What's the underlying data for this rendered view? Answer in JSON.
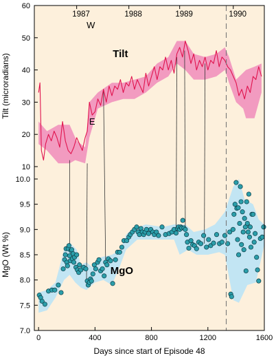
{
  "chart_data": [
    {
      "panel": "top",
      "type": "line",
      "ylabel": "Tilt (microradians)",
      "ylim": [
        10,
        60
      ],
      "yticks": [
        10,
        20,
        30,
        40,
        50,
        60
      ],
      "series_label": "Tilt",
      "annotations": [
        "W",
        "E"
      ],
      "year_labels": [
        {
          "label": "1987",
          "x": 350
        },
        {
          "label": "1988",
          "x": 720
        },
        {
          "label": "1989",
          "x": 1080
        },
        {
          "label": "1990",
          "x": 1460
        }
      ],
      "band_upper": [
        [
          0,
          24
        ],
        [
          60,
          21
        ],
        [
          140,
          23
        ],
        [
          220,
          23
        ],
        [
          270,
          18
        ],
        [
          330,
          16
        ],
        [
          360,
          30
        ],
        [
          420,
          33
        ],
        [
          520,
          36
        ],
        [
          600,
          36
        ],
        [
          680,
          37
        ],
        [
          760,
          38
        ],
        [
          840,
          42
        ],
        [
          920,
          44
        ],
        [
          980,
          49
        ],
        [
          1040,
          49
        ],
        [
          1100,
          45
        ],
        [
          1180,
          44
        ],
        [
          1260,
          45
        ],
        [
          1320,
          47
        ],
        [
          1350,
          44
        ],
        [
          1400,
          37
        ],
        [
          1470,
          40
        ],
        [
          1530,
          41
        ],
        [
          1580,
          42
        ]
      ],
      "band_lower": [
        [
          0,
          17
        ],
        [
          60,
          15
        ],
        [
          140,
          11
        ],
        [
          220,
          11
        ],
        [
          260,
          12
        ],
        [
          330,
          11
        ],
        [
          360,
          19
        ],
        [
          420,
          28
        ],
        [
          520,
          30
        ],
        [
          600,
          31
        ],
        [
          680,
          31
        ],
        [
          760,
          33
        ],
        [
          840,
          36
        ],
        [
          920,
          38
        ],
        [
          980,
          42
        ],
        [
          1040,
          40
        ],
        [
          1100,
          37
        ],
        [
          1180,
          37
        ],
        [
          1260,
          38
        ],
        [
          1320,
          40
        ],
        [
          1350,
          36
        ],
        [
          1400,
          30
        ],
        [
          1450,
          28
        ],
        [
          1470,
          25
        ],
        [
          1530,
          25
        ],
        [
          1580,
          33
        ]
      ],
      "x": [
        0,
        10,
        20,
        35,
        50,
        70,
        90,
        110,
        130,
        150,
        170,
        190,
        210,
        230,
        250,
        270,
        290,
        310,
        330,
        345,
        360,
        380,
        400,
        420,
        440,
        460,
        480,
        500,
        520,
        540,
        560,
        580,
        600,
        620,
        640,
        660,
        680,
        700,
        720,
        740,
        760,
        780,
        800,
        820,
        840,
        860,
        880,
        900,
        920,
        940,
        960,
        980,
        1000,
        1020,
        1040,
        1060,
        1080,
        1100,
        1120,
        1140,
        1160,
        1180,
        1200,
        1220,
        1240,
        1260,
        1280,
        1300,
        1320,
        1340,
        1360,
        1380,
        1400,
        1420,
        1440,
        1460,
        1480,
        1500,
        1520,
        1540,
        1560,
        1580
      ],
      "y": [
        33,
        36,
        15,
        12,
        17,
        20,
        18,
        21,
        19,
        16,
        24,
        18,
        15,
        14,
        16,
        19,
        17,
        15,
        19,
        21,
        30,
        26,
        27,
        31,
        29,
        34,
        30,
        35,
        32,
        35,
        34,
        37,
        33,
        36,
        35,
        38,
        34,
        37,
        35,
        33,
        39,
        35,
        38,
        41,
        37,
        41,
        40,
        44,
        40,
        43,
        39,
        45,
        47,
        44,
        49,
        46,
        42,
        45,
        40,
        43,
        41,
        44,
        40,
        43,
        42,
        46,
        41,
        44,
        43,
        41,
        40,
        38,
        36,
        32,
        34,
        31,
        35,
        33,
        38,
        37,
        41,
        38
      ]
    },
    {
      "panel": "bottom",
      "type": "scatter",
      "ylabel": "MgO (Wt %)",
      "xlabel": "Days since start of Episode 48",
      "ylim": [
        7.0,
        10.0
      ],
      "yticks": [
        7.0,
        7.5,
        8.0,
        8.5,
        9.0,
        9.5,
        10.0
      ],
      "xlim": [
        -30,
        1600
      ],
      "xticks": [
        0,
        400,
        800,
        1200,
        1600
      ],
      "series_label": "MgO",
      "event_x": 1330,
      "band_upper": [
        [
          0,
          7.75
        ],
        [
          60,
          7.8
        ],
        [
          120,
          7.95
        ],
        [
          180,
          8.6
        ],
        [
          220,
          8.75
        ],
        [
          270,
          8.6
        ],
        [
          300,
          8.3
        ],
        [
          340,
          8.35
        ],
        [
          380,
          8.25
        ],
        [
          440,
          8.45
        ],
        [
          520,
          8.5
        ],
        [
          580,
          8.6
        ],
        [
          620,
          8.9
        ],
        [
          660,
          9.0
        ],
        [
          760,
          9.1
        ],
        [
          880,
          9.05
        ],
        [
          960,
          9.1
        ],
        [
          1040,
          9.1
        ],
        [
          1100,
          8.95
        ],
        [
          1180,
          9.0
        ],
        [
          1250,
          9.1
        ],
        [
          1320,
          9.35
        ],
        [
          1380,
          9.85
        ],
        [
          1420,
          10.0
        ],
        [
          1460,
          9.6
        ],
        [
          1520,
          9.5
        ],
        [
          1560,
          9.2
        ],
        [
          1600,
          9.1
        ]
      ],
      "band_lower": [
        [
          0,
          7.35
        ],
        [
          60,
          7.4
        ],
        [
          120,
          7.65
        ],
        [
          180,
          8.0
        ],
        [
          220,
          8.1
        ],
        [
          260,
          7.95
        ],
        [
          300,
          7.85
        ],
        [
          340,
          7.8
        ],
        [
          400,
          7.95
        ],
        [
          460,
          8.0
        ],
        [
          520,
          7.9
        ],
        [
          580,
          8.3
        ],
        [
          620,
          8.6
        ],
        [
          700,
          8.8
        ],
        [
          800,
          8.8
        ],
        [
          880,
          8.8
        ],
        [
          960,
          8.8
        ],
        [
          1000,
          8.5
        ],
        [
          1060,
          8.6
        ],
        [
          1120,
          8.5
        ],
        [
          1200,
          8.5
        ],
        [
          1280,
          8.55
        ],
        [
          1320,
          8.5
        ],
        [
          1380,
          7.6
        ],
        [
          1420,
          7.55
        ],
        [
          1480,
          7.9
        ],
        [
          1540,
          7.95
        ],
        [
          1600,
          8.7
        ]
      ],
      "points": [
        [
          5,
          7.7
        ],
        [
          15,
          7.65
        ],
        [
          25,
          7.58
        ],
        [
          45,
          7.52
        ],
        [
          70,
          7.78
        ],
        [
          95,
          7.8
        ],
        [
          115,
          7.8
        ],
        [
          140,
          7.9
        ],
        [
          160,
          7.75
        ],
        [
          175,
          8.22
        ],
        [
          185,
          8.4
        ],
        [
          190,
          8.5
        ],
        [
          195,
          8.62
        ],
        [
          200,
          8.35
        ],
        [
          205,
          8.28
        ],
        [
          210,
          8.62
        ],
        [
          215,
          8.68
        ],
        [
          220,
          8.48
        ],
        [
          225,
          8.38
        ],
        [
          230,
          8.58
        ],
        [
          235,
          8.6
        ],
        [
          240,
          8.42
        ],
        [
          245,
          8.52
        ],
        [
          250,
          8.35
        ],
        [
          255,
          8.45
        ],
        [
          265,
          8.25
        ],
        [
          270,
          8.5
        ],
        [
          275,
          8.2
        ],
        [
          285,
          8.15
        ],
        [
          290,
          8.3
        ],
        [
          300,
          8.2
        ],
        [
          320,
          8.25
        ],
        [
          335,
          8.22
        ],
        [
          345,
          7.98
        ],
        [
          352,
          7.9
        ],
        [
          360,
          7.95
        ],
        [
          368,
          8.02
        ],
        [
          375,
          7.98
        ],
        [
          385,
          8.12
        ],
        [
          395,
          8.3
        ],
        [
          405,
          8.22
        ],
        [
          418,
          8.35
        ],
        [
          428,
          8.4
        ],
        [
          440,
          8.18
        ],
        [
          452,
          8.22
        ],
        [
          465,
          8.08
        ],
        [
          475,
          8.35
        ],
        [
          485,
          8.3
        ],
        [
          495,
          8.42
        ],
        [
          510,
          8.38
        ],
        [
          525,
          7.93
        ],
        [
          545,
          8.4
        ],
        [
          560,
          8.55
        ],
        [
          575,
          8.55
        ],
        [
          590,
          8.65
        ],
        [
          605,
          8.78
        ],
        [
          625,
          8.78
        ],
        [
          640,
          8.85
        ],
        [
          650,
          8.9
        ],
        [
          665,
          8.95
        ],
        [
          680,
          9.0
        ],
        [
          695,
          9.05
        ],
        [
          705,
          8.95
        ],
        [
          715,
          8.9
        ],
        [
          725,
          9.02
        ],
        [
          735,
          8.95
        ],
        [
          745,
          8.9
        ],
        [
          755,
          8.95
        ],
        [
          765,
          9.0
        ],
        [
          780,
          8.92
        ],
        [
          795,
          9.0
        ],
        [
          810,
          8.95
        ],
        [
          820,
          8.9
        ],
        [
          835,
          8.95
        ],
        [
          850,
          8.88
        ],
        [
          875,
          9.05
        ],
        [
          900,
          8.9
        ],
        [
          925,
          8.92
        ],
        [
          945,
          8.95
        ],
        [
          960,
          9.0
        ],
        [
          975,
          8.93
        ],
        [
          985,
          9.02
        ],
        [
          992,
          9.05
        ],
        [
          1000,
          9.0
        ],
        [
          1008,
          9.05
        ],
        [
          1015,
          9.03
        ],
        [
          1022,
          9.18
        ],
        [
          1030,
          9.03
        ],
        [
          1040,
          9.0
        ],
        [
          1048,
          8.9
        ],
        [
          1055,
          8.75
        ],
        [
          1065,
          8.63
        ],
        [
          1080,
          8.78
        ],
        [
          1092,
          8.7
        ],
        [
          1105,
          8.68
        ],
        [
          1120,
          8.62
        ],
        [
          1135,
          8.75
        ],
        [
          1150,
          8.72
        ],
        [
          1170,
          8.88
        ],
        [
          1190,
          8.65
        ],
        [
          1205,
          8.8
        ],
        [
          1220,
          8.68
        ],
        [
          1240,
          8.73
        ],
        [
          1262,
          8.9
        ],
        [
          1282,
          8.72
        ],
        [
          1300,
          8.75
        ],
        [
          1320,
          8.88
        ],
        [
          1340,
          8.72
        ],
        [
          1355,
          8.95
        ],
        [
          1362,
          7.72
        ],
        [
          1368,
          7.67
        ],
        [
          1378,
          9.0
        ],
        [
          1385,
          9.3
        ],
        [
          1392,
          9.5
        ],
        [
          1400,
          9.93
        ],
        [
          1405,
          9.42
        ],
        [
          1410,
          8.8
        ],
        [
          1415,
          9.43
        ],
        [
          1418,
          8.5
        ],
        [
          1425,
          9.12
        ],
        [
          1430,
          9.85
        ],
        [
          1435,
          9.55
        ],
        [
          1438,
          8.7
        ],
        [
          1445,
          9.35
        ],
        [
          1450,
          8.95
        ],
        [
          1455,
          8.6
        ],
        [
          1460,
          9.22
        ],
        [
          1465,
          9.05
        ],
        [
          1470,
          8.18
        ],
        [
          1475,
          9.55
        ],
        [
          1480,
          9.12
        ],
        [
          1485,
          8.95
        ],
        [
          1490,
          9.7
        ],
        [
          1495,
          8.85
        ],
        [
          1500,
          9.05
        ],
        [
          1505,
          8.65
        ],
        [
          1512,
          9.3
        ],
        [
          1520,
          9.3
        ],
        [
          1528,
          8.75
        ],
        [
          1535,
          8.92
        ],
        [
          1545,
          8.45
        ],
        [
          1552,
          8.2
        ],
        [
          1560,
          7.98
        ],
        [
          1572,
          8.82
        ],
        [
          1585,
          8.85
        ],
        [
          1595,
          9.05
        ]
      ]
    }
  ],
  "connectors": [
    {
      "x1": 220,
      "y1": 12,
      "x2": 220,
      "y2": 8.62
    },
    {
      "x1": 345,
      "y1": 11,
      "x2": 340,
      "y2": 8.0
    },
    {
      "x1": 460,
      "y1": 34,
      "x2": 475,
      "y2": 8.4
    },
    {
      "x1": 980,
      "y1": 44,
      "x2": 975,
      "y2": 8.95
    },
    {
      "x1": 1035,
      "y1": 46,
      "x2": 1040,
      "y2": 9.0
    },
    {
      "x1": 1180,
      "y1": 42,
      "x2": 1175,
      "y2": 8.72
    }
  ],
  "colors": {
    "background": "#fdf0dc",
    "tilt_line": "#e0124d",
    "tilt_band": "#f29bc0",
    "mgo_band": "#c2e5f3",
    "mgo_point": "#2b9eaa",
    "axis": "#000000"
  }
}
